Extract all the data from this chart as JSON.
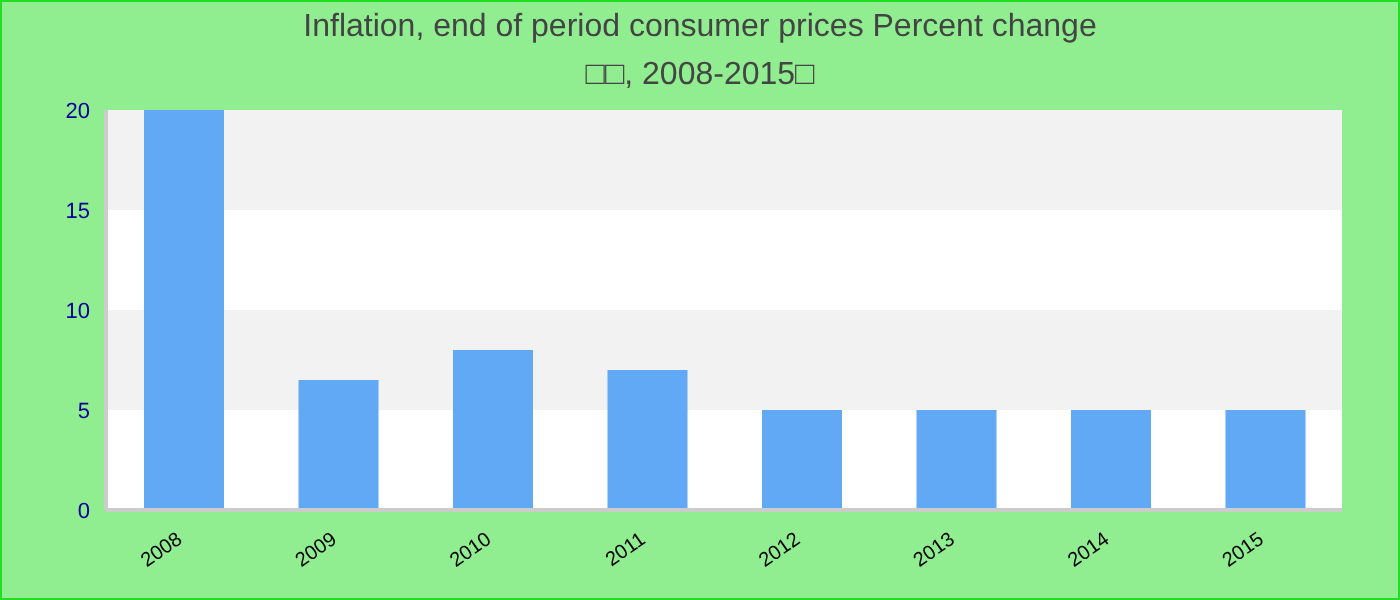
{
  "chart_data": {
    "type": "bar",
    "title": "Inflation, end of period consumer prices  Percent change",
    "subtitle": "□□, 2008-2015□",
    "categories": [
      "2008",
      "2009",
      "2010",
      "2011",
      "2012",
      "2013",
      "2014",
      "2015"
    ],
    "values": [
      20,
      6.5,
      8,
      7,
      5,
      5,
      5,
      5
    ],
    "color": "#61a8f5",
    "ylim": [
      0,
      20
    ],
    "yticks": [
      0,
      5,
      10,
      15,
      20
    ],
    "bands": [
      {
        "axis": "y",
        "from": 5,
        "to": 10,
        "color": "#f2f2f2"
      },
      {
        "axis": "y",
        "from": 15,
        "to": 20,
        "color": "#f2f2f2"
      }
    ]
  }
}
